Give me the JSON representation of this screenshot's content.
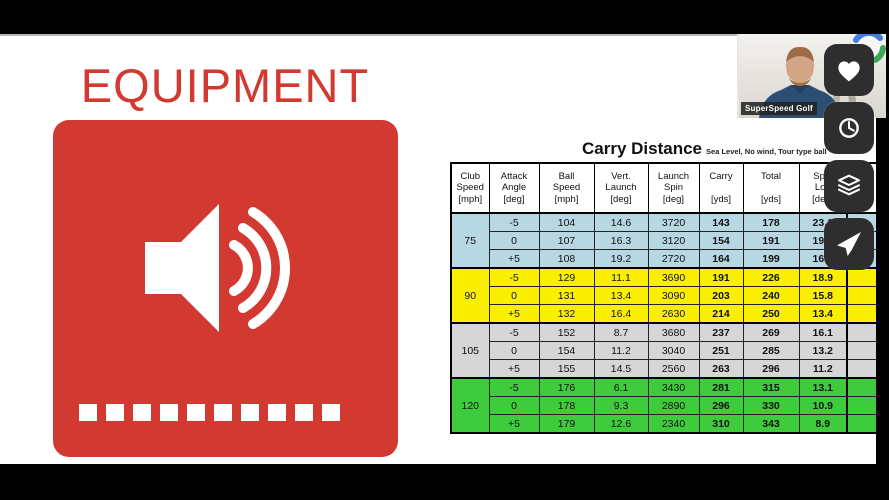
{
  "slide": {
    "title": "EQUIPMENT",
    "accent_color": "#d23a31"
  },
  "sound_tile": {
    "icon": "speaker-with-sound-waves-icon",
    "squares_count": 10
  },
  "chart_data": {
    "type": "table",
    "title": "Carry Distance",
    "subtitle": "Sea Level, No wind, Tour type ball",
    "header_lines": [
      [
        "Club",
        "Speed",
        "[mph]"
      ],
      [
        "Attack",
        "Angle",
        "[deg]"
      ],
      [
        "Ball",
        "Speed",
        "[mph]"
      ],
      [
        "Vert.",
        "Launch",
        "[deg]"
      ],
      [
        "Launch",
        "Spin",
        "[deg]"
      ],
      [
        "Carry",
        "",
        "[yds]"
      ],
      [
        "Total",
        "",
        "[yds]"
      ],
      [
        "Spin",
        "Loft",
        "[deg]"
      ]
    ],
    "bold_columns": [
      4,
      5,
      6
    ],
    "groups": [
      {
        "club_speed": "75",
        "row_color": "#b7d7e3",
        "rows": [
          [
            "-5",
            "104",
            "14.6",
            "3720",
            "143",
            "178",
            "23.1"
          ],
          [
            "0",
            "107",
            "16.3",
            "3120",
            "154",
            "191",
            "19.2"
          ],
          [
            "+5",
            "108",
            "19.2",
            "2720",
            "164",
            "199",
            "16.8"
          ]
        ]
      },
      {
        "club_speed": "90",
        "row_color": "#fbef00",
        "rows": [
          [
            "-5",
            "129",
            "11.1",
            "3690",
            "191",
            "226",
            "18.9"
          ],
          [
            "0",
            "131",
            "13.4",
            "3090",
            "203",
            "240",
            "15.8"
          ],
          [
            "+5",
            "132",
            "16.4",
            "2630",
            "214",
            "250",
            "13.4"
          ]
        ]
      },
      {
        "club_speed": "105",
        "row_color": "#d6d6d6",
        "rows": [
          [
            "-5",
            "152",
            "8.7",
            "3680",
            "237",
            "269",
            "16.1"
          ],
          [
            "0",
            "154",
            "11.2",
            "3040",
            "251",
            "285",
            "13.2"
          ],
          [
            "+5",
            "155",
            "14.5",
            "2560",
            "263",
            "296",
            "11.2"
          ]
        ]
      },
      {
        "club_speed": "120",
        "row_color": "#3ecb3c",
        "rows": [
          [
            "-5",
            "176",
            "6.1",
            "3430",
            "281",
            "315",
            "13.1"
          ],
          [
            "0",
            "178",
            "9.3",
            "2890",
            "296",
            "330",
            "10.9"
          ],
          [
            "+5",
            "179",
            "12.6",
            "2340",
            "310",
            "343",
            "8.9"
          ]
        ]
      }
    ]
  },
  "webcam": {
    "label": "SuperSpeed Golf"
  },
  "toolbar": {
    "buttons": [
      {
        "icon": "heart-icon"
      },
      {
        "icon": "clock-icon"
      },
      {
        "icon": "layers-icon"
      },
      {
        "icon": "send-icon"
      }
    ]
  }
}
